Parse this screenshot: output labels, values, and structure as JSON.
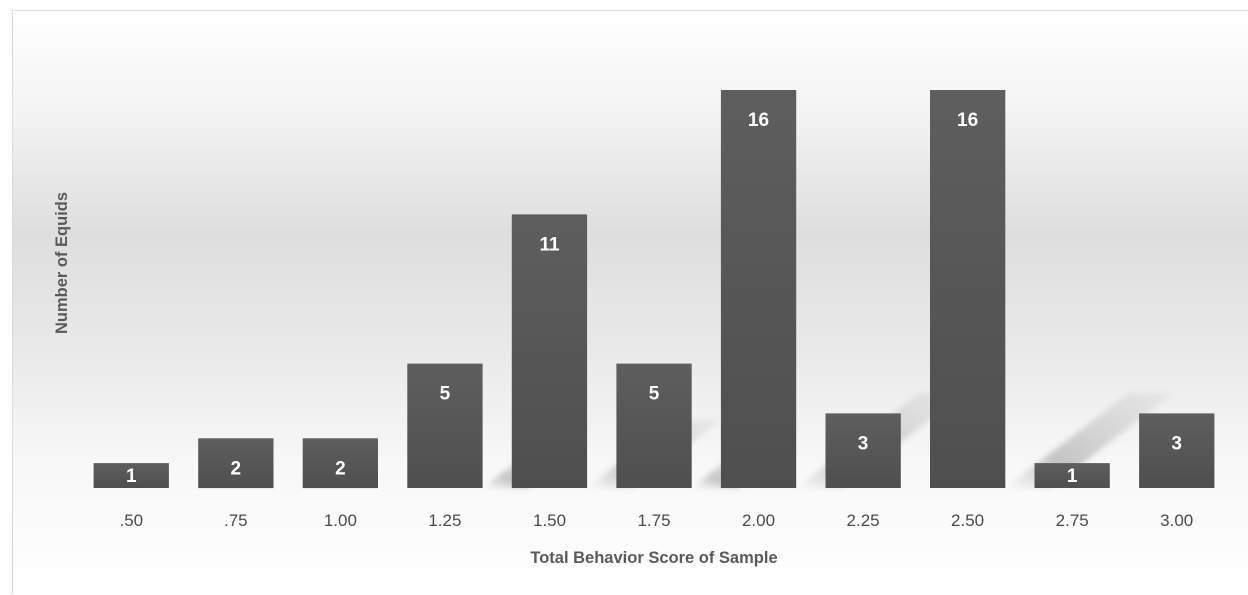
{
  "chart_data": {
    "type": "bar",
    "title": "",
    "xlabel": "Total Behavior Score of Sample",
    "ylabel": "Number of Equids",
    "categories": [
      ".50",
      ".75",
      "1.00",
      "1.25",
      "1.50",
      "1.75",
      "2.00",
      "2.25",
      "2.50",
      "2.75",
      "3.00"
    ],
    "values": [
      1,
      2,
      2,
      5,
      11,
      5,
      16,
      3,
      16,
      1,
      3
    ],
    "ylim": [
      0,
      16
    ],
    "grid": false,
    "legend": "none",
    "data_labels": true,
    "bar_color": "#595959"
  }
}
